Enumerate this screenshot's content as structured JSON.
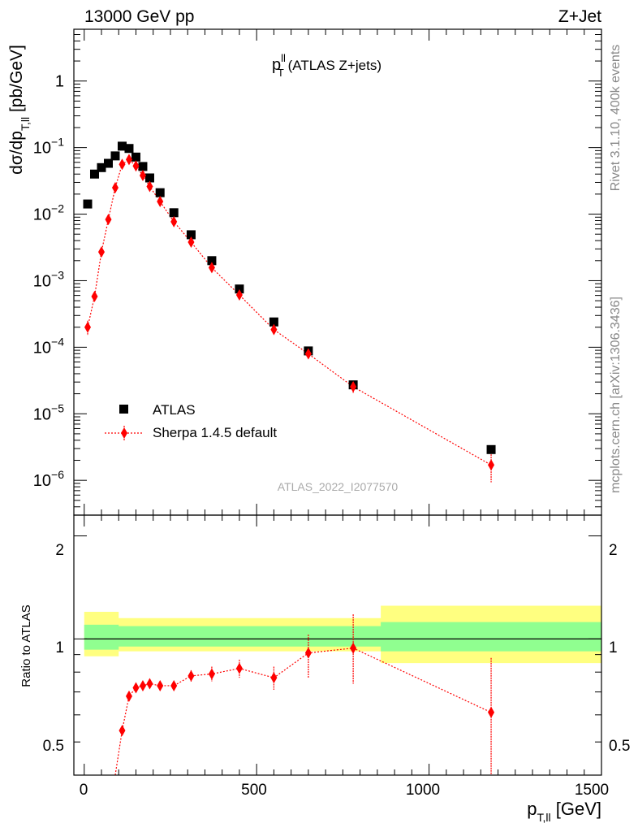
{
  "header": {
    "energy_label": "13000 GeV pp",
    "process_label": "Z+Jet"
  },
  "side": {
    "rivet_label": "Rivet 3.1.10,  400k events",
    "mcplots_label": "mcplots.cern.ch [arXiv:1306.3436]"
  },
  "main_panel": {
    "title_main": "p",
    "title_sup": "ll",
    "title_sub": "T",
    "title_rest": " (ATLAS Z+jets)",
    "ylabel_main": "dσ/dp",
    "ylabel_sub": "T,ll",
    "ylabel_unit": " [pb/GeV]",
    "analysis_id": "ATLAS_2022_I2077570",
    "legend": [
      {
        "name": "ATLAS",
        "color": "#000000",
        "marker": "square"
      },
      {
        "name": "Sherpa 1.4.5 default",
        "color": "#ff0000",
        "marker": "diamond"
      }
    ]
  },
  "ratio_panel": {
    "ylabel": "Ratio to ATLAS",
    "ytick_labels": [
      "2",
      "1",
      "0.5"
    ]
  },
  "xaxis": {
    "label_main": "p",
    "label_sub": "T,ll",
    "label_unit": " [GeV]",
    "tick_labels": [
      "0",
      "500",
      "1000",
      "1500"
    ]
  },
  "chart_data": [
    {
      "type": "scatter",
      "yscale": "log",
      "xlim": [
        -30,
        1500
      ],
      "ylim": [
        3e-07,
        6
      ],
      "ytick_labels": [
        "1",
        "10^-1",
        "10^-2",
        "10^-3",
        "10^-4",
        "10^-5",
        "10^-6"
      ],
      "series": [
        {
          "name": "ATLAS",
          "color": "#000000",
          "x": [
            10,
            30,
            50,
            70,
            90,
            110,
            130,
            150,
            170,
            190,
            220,
            260,
            310,
            370,
            450,
            550,
            650,
            780,
            1180
          ],
          "y": [
            0.0142,
            0.04,
            0.05,
            0.058,
            0.075,
            0.105,
            0.097,
            0.072,
            0.052,
            0.035,
            0.021,
            0.0105,
            0.0049,
            0.002,
            0.00075,
            0.00024,
            8.8e-05,
            2.72e-05,
            2.9e-06
          ]
        },
        {
          "name": "Sherpa 1.4.5 default",
          "color": "#ff0000",
          "x": [
            10,
            30,
            50,
            70,
            90,
            110,
            130,
            150,
            170,
            190,
            220,
            260,
            310,
            370,
            450,
            550,
            650,
            780,
            1180
          ],
          "y": [
            0.0002,
            0.00058,
            0.0027,
            0.0083,
            0.025,
            0.056,
            0.066,
            0.053,
            0.038,
            0.026,
            0.0155,
            0.0077,
            0.0038,
            0.00157,
            0.00061,
            0.000184,
            7.95e-05,
            2.55e-05,
            1.7e-06
          ],
          "yerr_rel": [
            0.25,
            0.06,
            0.04,
            0.03,
            0.02,
            0.02,
            0.02,
            0.02,
            0.02,
            0.02,
            0.03,
            0.03,
            0.04,
            0.05,
            0.06,
            0.07,
            0.12,
            0.2,
            0.45
          ]
        }
      ]
    },
    {
      "type": "line",
      "yscale": "log",
      "xlim": [
        -30,
        1500
      ],
      "ylim": [
        0.4,
        2.3
      ],
      "ylabel": "Ratio to ATLAS",
      "reference_line": 1,
      "bands": [
        {
          "color": "#ffff80",
          "edges": [
            0,
            100,
            860,
            1500
          ],
          "lo": [
            0.89,
            0.92,
            0.85
          ],
          "hi": [
            1.2,
            1.15,
            1.25
          ]
        },
        {
          "color": "#90ff90",
          "edges": [
            0,
            100,
            860,
            1500
          ],
          "lo": [
            0.93,
            0.95,
            0.92
          ],
          "hi": [
            1.1,
            1.09,
            1.12
          ]
        }
      ],
      "series": [
        {
          "name": "Sherpa 1.4.5 default",
          "color": "#ff0000",
          "x": [
            90,
            110,
            130,
            150,
            170,
            190,
            220,
            260,
            310,
            370,
            450,
            550,
            650,
            780,
            1180
          ],
          "y": [
            0.33,
            0.54,
            0.68,
            0.72,
            0.73,
            0.74,
            0.73,
            0.73,
            0.78,
            0.79,
            0.82,
            0.77,
            0.91,
            0.94,
            0.61
          ],
          "yerr_lo": [
            0.0,
            0.0,
            0.02,
            0.01,
            0.01,
            0.01,
            0.01,
            0.02,
            0.03,
            0.04,
            0.05,
            0.06,
            0.14,
            0.2,
            0.26
          ],
          "yerr_hi": [
            0.0,
            0.0,
            0.02,
            0.01,
            0.01,
            0.01,
            0.01,
            0.02,
            0.03,
            0.04,
            0.05,
            0.06,
            0.12,
            0.24,
            0.27
          ]
        }
      ]
    }
  ]
}
